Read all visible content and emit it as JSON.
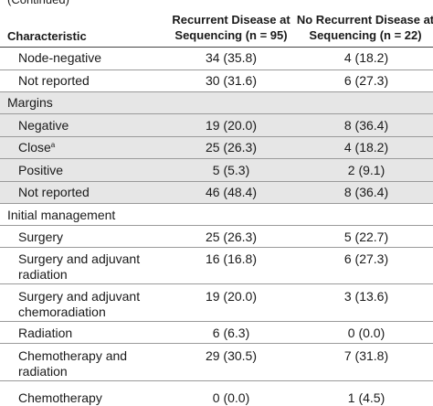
{
  "continued": "(Continued)",
  "header": {
    "characteristic": "Characteristic",
    "col_recurrent": "Recurrent Disease at Sequencing (n = 95)",
    "col_no_recurrent": "No Recurrent Disease at Sequencing (n = 22)"
  },
  "rows": [
    {
      "label": "Node-negative",
      "recurrent": "34 (35.8)",
      "no_recurrent": "4 (18.2)"
    },
    {
      "label": "Not reported",
      "recurrent": "30 (31.6)",
      "no_recurrent": "6 (27.3)"
    },
    {
      "label": "Margins",
      "recurrent": "",
      "no_recurrent": ""
    },
    {
      "label": "Negative",
      "recurrent": "19 (20.0)",
      "no_recurrent": "8 (36.4)"
    },
    {
      "label": "Close",
      "sup": "a",
      "recurrent": "25 (26.3)",
      "no_recurrent": "4 (18.2)"
    },
    {
      "label": "Positive",
      "recurrent": "5 (5.3)",
      "no_recurrent": "2 (9.1)"
    },
    {
      "label": "Not reported",
      "recurrent": "46 (48.4)",
      "no_recurrent": "8 (36.4)"
    },
    {
      "label": "Initial management",
      "recurrent": "",
      "no_recurrent": ""
    },
    {
      "label": "Surgery",
      "recurrent": "25 (26.3)",
      "no_recurrent": "5 (22.7)"
    },
    {
      "label": "Surgery and adjuvant radiation",
      "recurrent": "16 (16.8)",
      "no_recurrent": "6 (27.3)"
    },
    {
      "label": "Surgery and adjuvant chemoradiation",
      "recurrent": "19 (20.0)",
      "no_recurrent": "3 (13.6)"
    },
    {
      "label": "Radiation",
      "recurrent": "6 (6.3)",
      "no_recurrent": "0 (0.0)"
    },
    {
      "label": "Chemotherapy and radiation",
      "recurrent": "29 (30.5)",
      "no_recurrent": "7 (31.8)"
    },
    {
      "label": "Chemotherapy",
      "recurrent": "0 (0.0)",
      "no_recurrent": "1 (4.5)"
    }
  ]
}
